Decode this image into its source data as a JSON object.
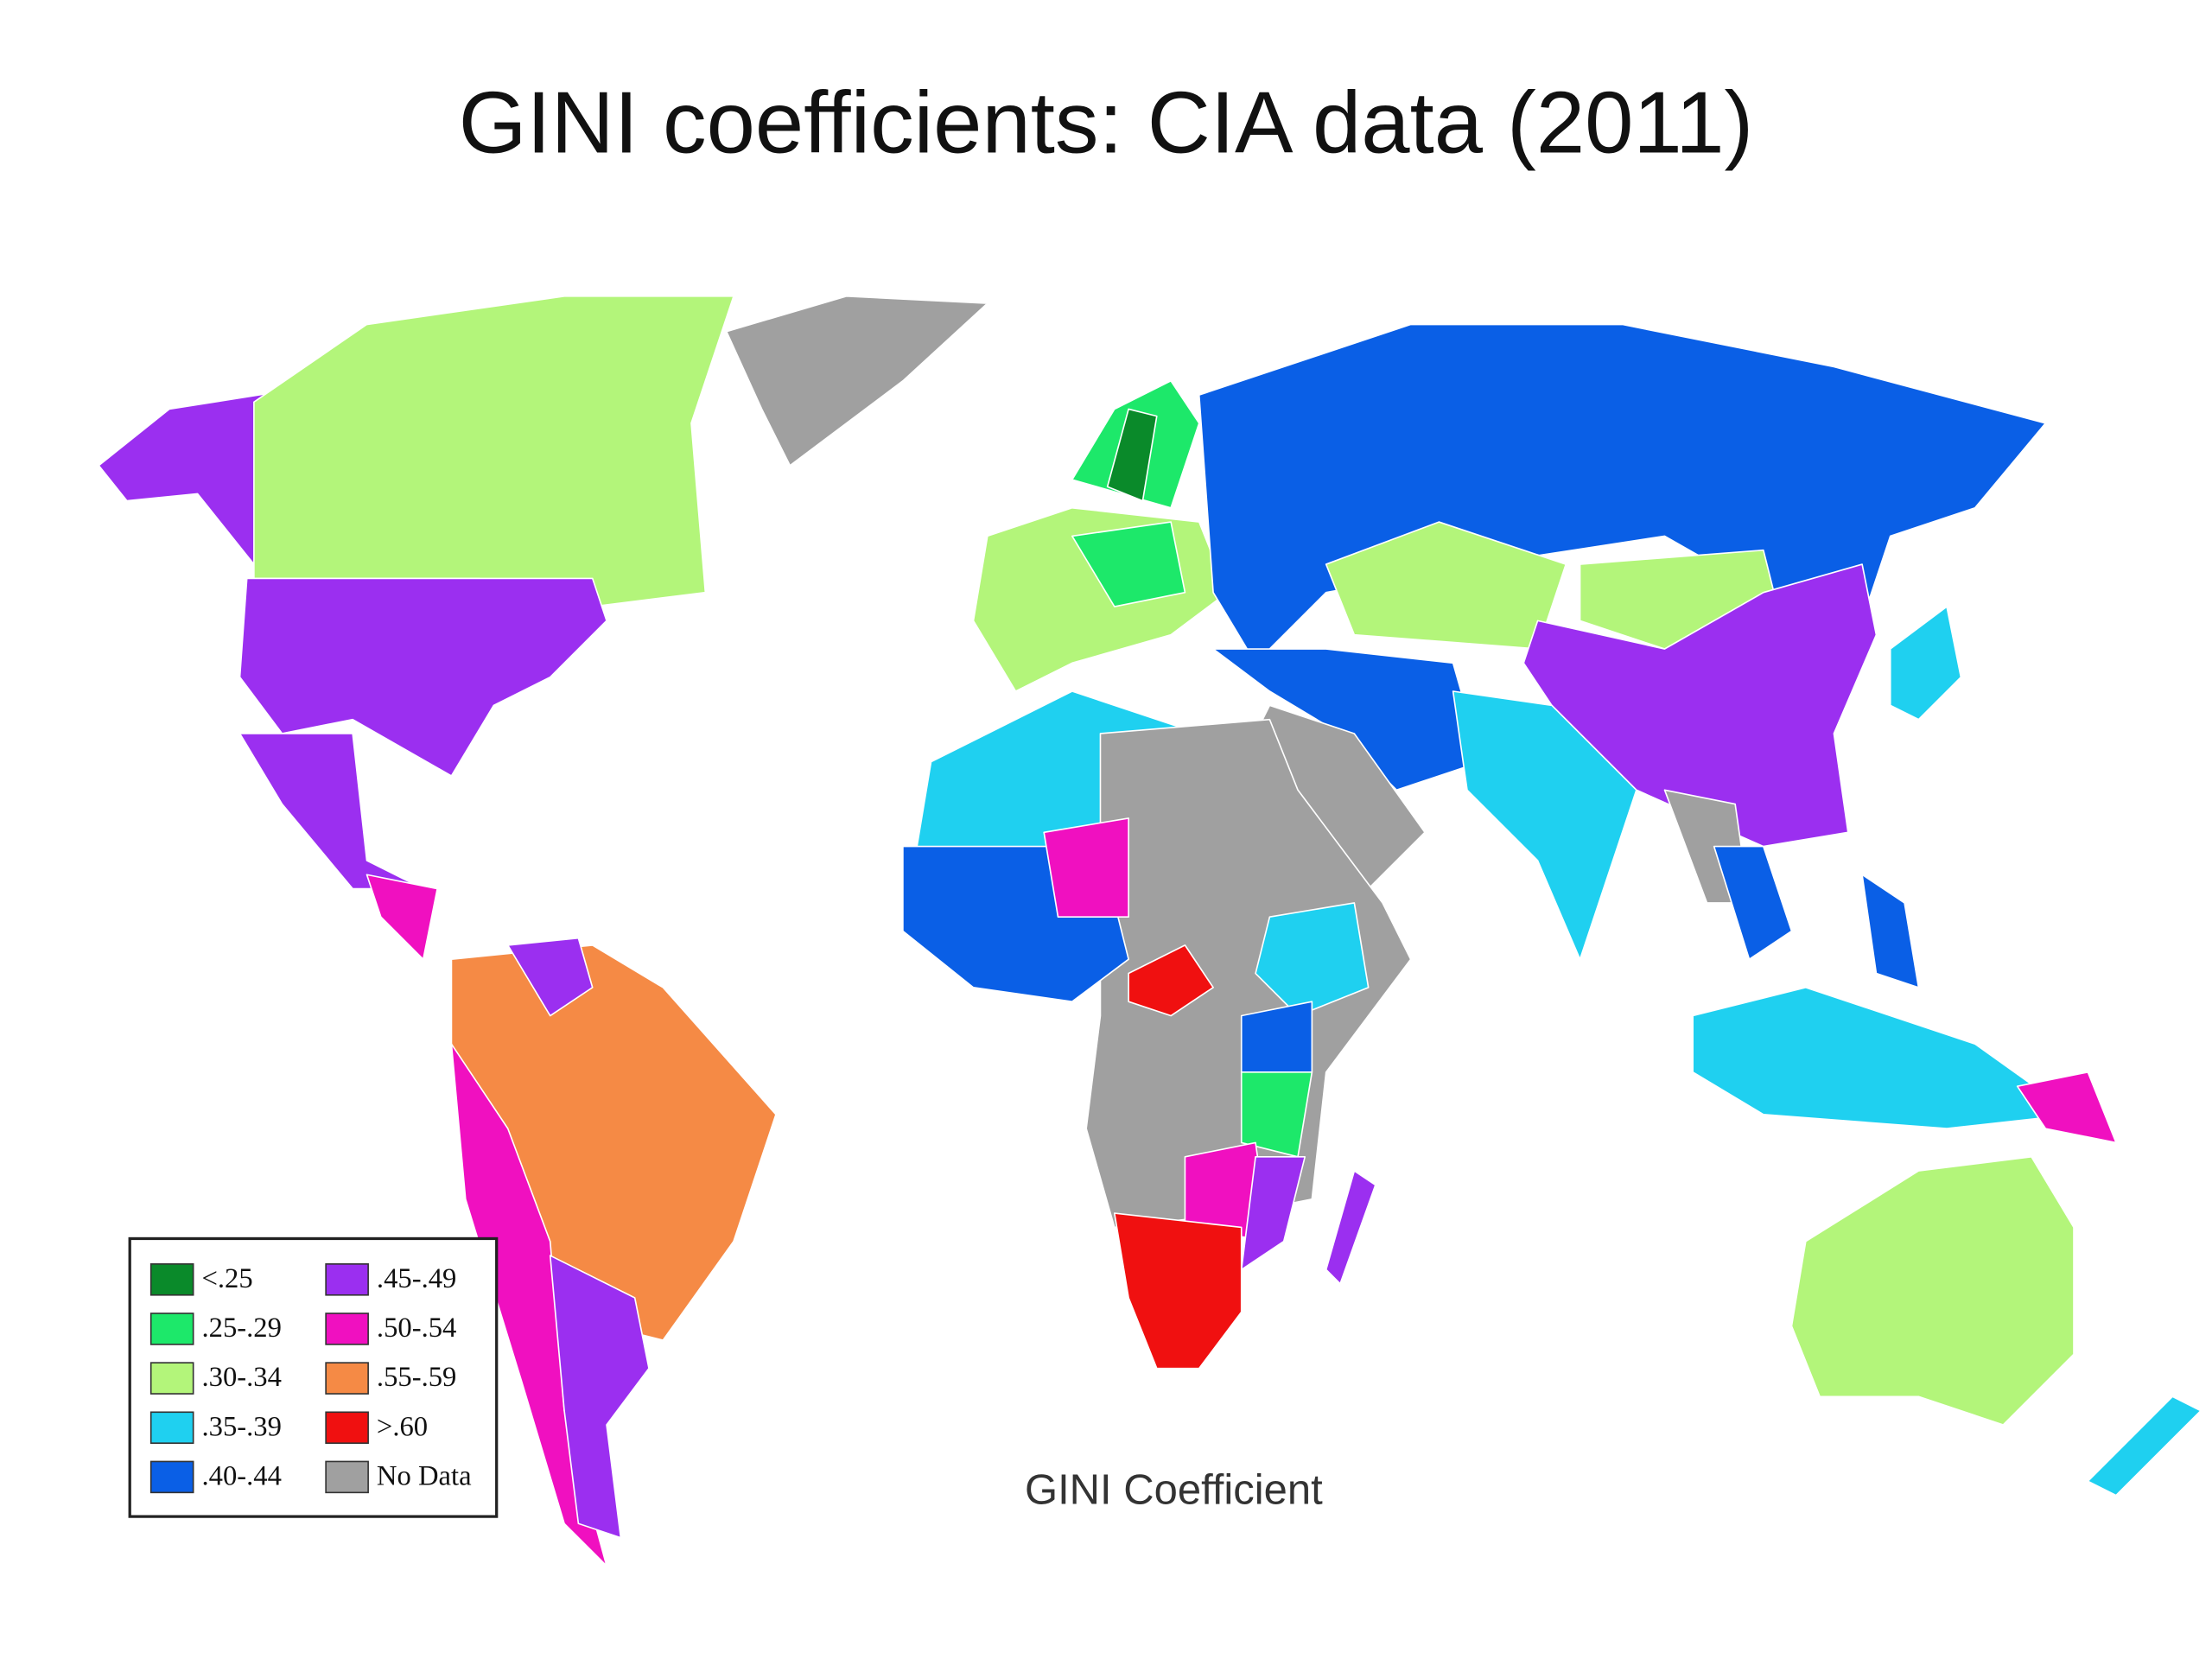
{
  "title": "GINI coefficients: CIA data (2011)",
  "map": {
    "caption": "GINI Coefficient",
    "legend": [
      {
        "label": "<.25",
        "color": "#0a8a2a"
      },
      {
        "label": ".25-.29",
        "color": "#1de86a"
      },
      {
        "label": ".30-.34",
        "color": "#b3f57a"
      },
      {
        "label": ".35-.39",
        "color": "#1fd0f0"
      },
      {
        "label": ".40-.44",
        "color": "#0a5fe6"
      },
      {
        "label": ".45-.49",
        "color": "#9b2ff0"
      },
      {
        "label": ".50-.54",
        "color": "#f010c0"
      },
      {
        "label": ".55-.59",
        "color": "#f58a45"
      },
      {
        "label": ">.60",
        "color": "#f01010"
      },
      {
        "label": "No Data",
        "color": "#a0a0a0"
      }
    ]
  }
}
